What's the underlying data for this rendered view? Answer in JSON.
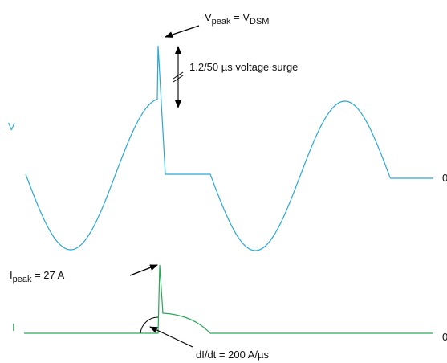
{
  "labels": {
    "v_axis": "V",
    "i_axis": "I",
    "v_zero": "0",
    "i_zero": "0"
  },
  "annotations": {
    "v_peak": [
      "V",
      "peak",
      " = V",
      "DSM"
    ],
    "surge": "1.2/50 µs voltage surge",
    "i_peak": [
      "I",
      "peak",
      " = 27 A"
    ],
    "didt": "dI/dt = 200 A/µs"
  }
}
